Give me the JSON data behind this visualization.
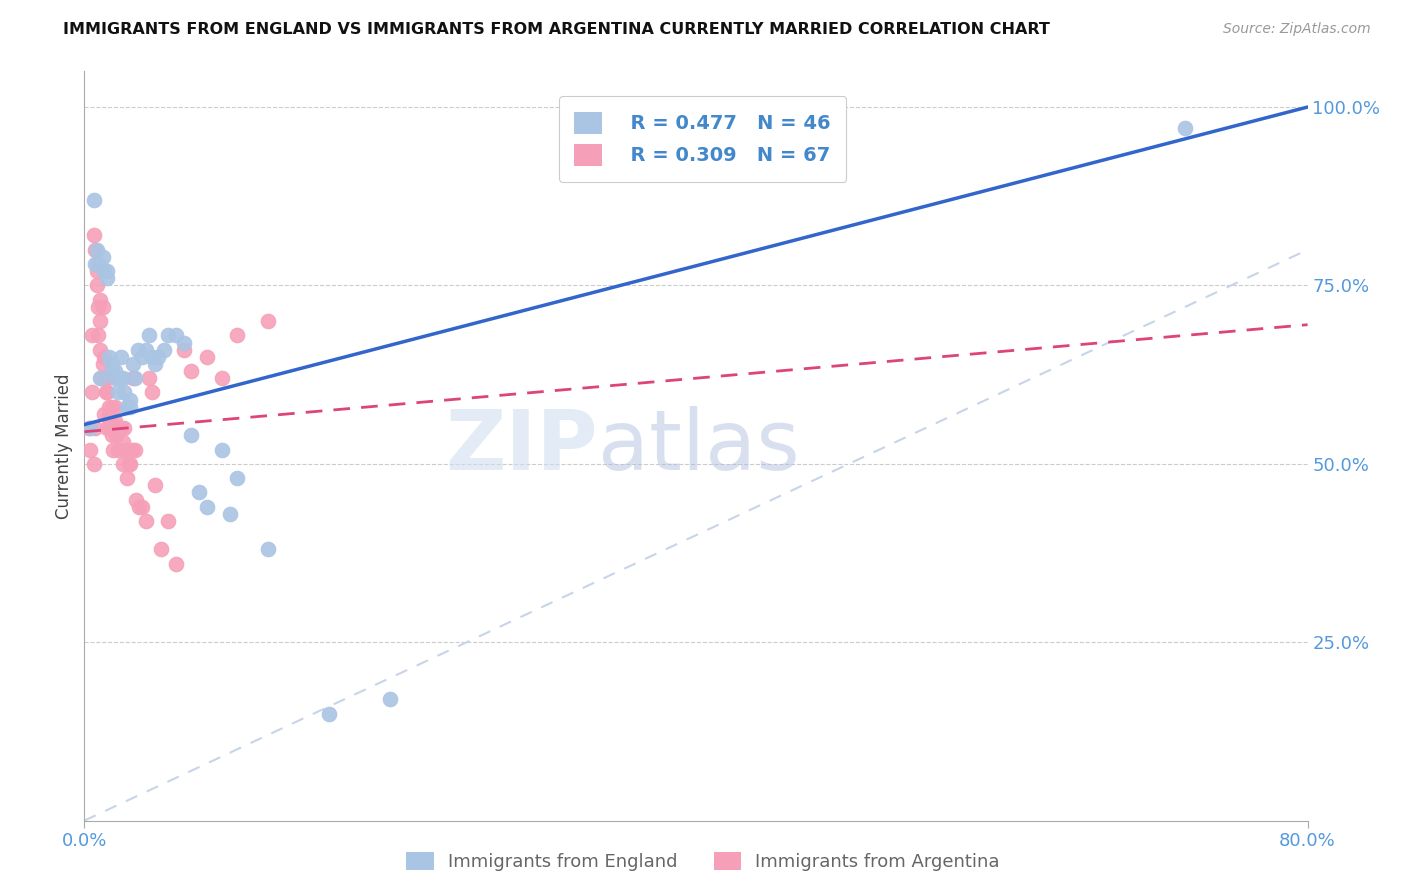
{
  "title": "IMMIGRANTS FROM ENGLAND VS IMMIGRANTS FROM ARGENTINA CURRENTLY MARRIED CORRELATION CHART",
  "source": "Source: ZipAtlas.com",
  "ylabel": "Currently Married",
  "xlim": [
    0.0,
    0.8
  ],
  "ylim": [
    0.0,
    1.05
  ],
  "x_ticks": [
    0.0,
    0.8
  ],
  "x_tick_labels": [
    "0.0%",
    "80.0%"
  ],
  "y_ticks": [
    0.25,
    0.5,
    0.75,
    1.0
  ],
  "y_tick_labels": [
    "25.0%",
    "50.0%",
    "75.0%",
    "100.0%"
  ],
  "legend_england_R": "R = 0.477",
  "legend_england_N": "N = 46",
  "legend_argentina_R": "R = 0.309",
  "legend_argentina_N": "N = 67",
  "england_color": "#aac4e4",
  "argentina_color": "#f5a0b8",
  "england_line_color": "#3366cc",
  "argentina_line_color": "#dd4477",
  "ref_line_color": "#c8d4e8",
  "watermark_color": "#ddeeff",
  "england_line_x0": 0.0,
  "england_line_y0": 0.555,
  "england_line_x1": 0.8,
  "england_line_y1": 1.0,
  "argentina_line_x0": 0.0,
  "argentina_line_y0": 0.545,
  "argentina_line_x1": 0.8,
  "argentina_line_y1": 0.695,
  "england_scatter_x": [
    0.004,
    0.006,
    0.007,
    0.008,
    0.009,
    0.01,
    0.012,
    0.013,
    0.015,
    0.015,
    0.016,
    0.018,
    0.018,
    0.02,
    0.02,
    0.022,
    0.023,
    0.024,
    0.025,
    0.026,
    0.028,
    0.03,
    0.03,
    0.032,
    0.033,
    0.035,
    0.038,
    0.04,
    0.042,
    0.044,
    0.046,
    0.048,
    0.052,
    0.055,
    0.06,
    0.065,
    0.07,
    0.075,
    0.08,
    0.09,
    0.095,
    0.1,
    0.12,
    0.16,
    0.2,
    0.72
  ],
  "england_scatter_y": [
    0.55,
    0.87,
    0.78,
    0.8,
    0.78,
    0.62,
    0.79,
    0.77,
    0.77,
    0.76,
    0.65,
    0.64,
    0.63,
    0.63,
    0.62,
    0.6,
    0.62,
    0.65,
    0.62,
    0.6,
    0.58,
    0.59,
    0.58,
    0.64,
    0.62,
    0.66,
    0.65,
    0.66,
    0.68,
    0.65,
    0.64,
    0.65,
    0.66,
    0.68,
    0.68,
    0.67,
    0.54,
    0.46,
    0.44,
    0.52,
    0.43,
    0.48,
    0.38,
    0.15,
    0.17,
    0.97
  ],
  "argentina_scatter_x": [
    0.003,
    0.004,
    0.005,
    0.005,
    0.006,
    0.006,
    0.007,
    0.007,
    0.008,
    0.008,
    0.009,
    0.009,
    0.01,
    0.01,
    0.01,
    0.011,
    0.012,
    0.012,
    0.013,
    0.013,
    0.014,
    0.014,
    0.015,
    0.015,
    0.015,
    0.016,
    0.016,
    0.017,
    0.017,
    0.018,
    0.018,
    0.019,
    0.02,
    0.02,
    0.021,
    0.021,
    0.022,
    0.022,
    0.023,
    0.024,
    0.025,
    0.025,
    0.026,
    0.027,
    0.028,
    0.028,
    0.029,
    0.03,
    0.031,
    0.032,
    0.033,
    0.034,
    0.036,
    0.038,
    0.04,
    0.042,
    0.044,
    0.046,
    0.05,
    0.055,
    0.06,
    0.065,
    0.07,
    0.08,
    0.09,
    0.1,
    0.12
  ],
  "argentina_scatter_y": [
    0.55,
    0.52,
    0.6,
    0.68,
    0.5,
    0.82,
    0.55,
    0.8,
    0.77,
    0.75,
    0.72,
    0.68,
    0.73,
    0.7,
    0.66,
    0.62,
    0.64,
    0.72,
    0.57,
    0.65,
    0.62,
    0.6,
    0.62,
    0.6,
    0.55,
    0.58,
    0.57,
    0.56,
    0.55,
    0.54,
    0.58,
    0.52,
    0.58,
    0.56,
    0.55,
    0.54,
    0.55,
    0.52,
    0.55,
    0.55,
    0.53,
    0.5,
    0.55,
    0.52,
    0.52,
    0.48,
    0.5,
    0.5,
    0.52,
    0.62,
    0.52,
    0.45,
    0.44,
    0.44,
    0.42,
    0.62,
    0.6,
    0.47,
    0.38,
    0.42,
    0.36,
    0.66,
    0.63,
    0.65,
    0.62,
    0.68,
    0.7
  ]
}
